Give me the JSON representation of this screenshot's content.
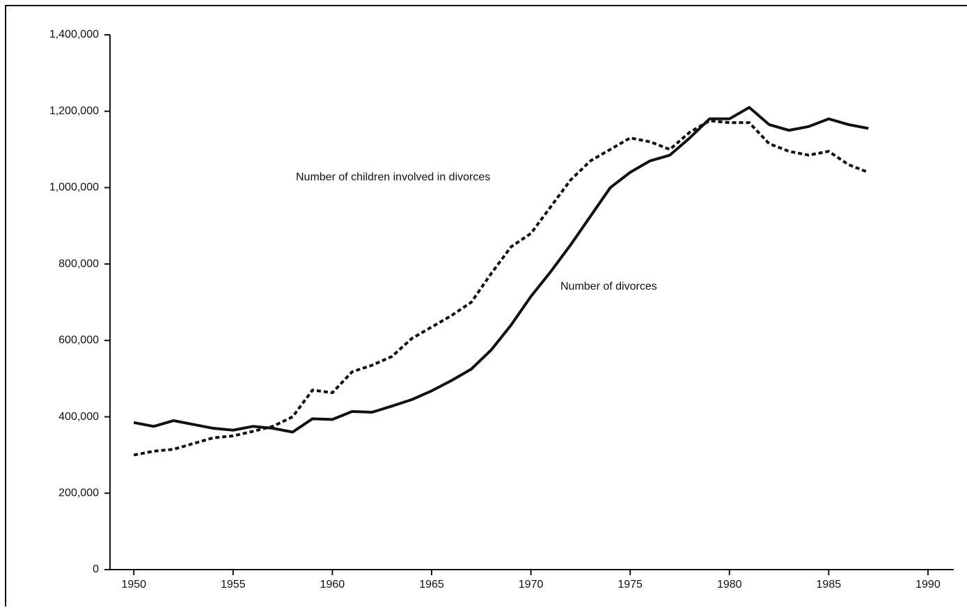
{
  "chart_data": {
    "type": "line",
    "x": [
      1950,
      1951,
      1952,
      1953,
      1954,
      1955,
      1956,
      1957,
      1958,
      1959,
      1960,
      1961,
      1962,
      1963,
      1964,
      1965,
      1966,
      1967,
      1968,
      1969,
      1970,
      1971,
      1972,
      1973,
      1974,
      1975,
      1976,
      1977,
      1978,
      1979,
      1980,
      1981,
      1982,
      1983,
      1984,
      1985,
      1986,
      1987
    ],
    "series": [
      {
        "name": "Number of divorces",
        "color": "#111111",
        "style": "solid",
        "values": [
          385000,
          375000,
          390000,
          380000,
          370000,
          365000,
          375000,
          370000,
          360000,
          395000,
          393000,
          414000,
          412000,
          428000,
          445000,
          468000,
          495000,
          525000,
          575000,
          640000,
          715000,
          780000,
          850000,
          925000,
          1000000,
          1040000,
          1070000,
          1085000,
          1130000,
          1180000,
          1180000,
          1210000,
          1165000,
          1150000,
          1160000,
          1180000,
          1165000,
          1155000
        ]
      },
      {
        "name": "Number of children involved in divorces",
        "color": "#111111",
        "style": "dotted",
        "values": [
          300000,
          310000,
          315000,
          330000,
          345000,
          350000,
          362000,
          375000,
          400000,
          470000,
          463000,
          518000,
          535000,
          558000,
          605000,
          635000,
          665000,
          700000,
          775000,
          845000,
          880000,
          950000,
          1020000,
          1070000,
          1100000,
          1130000,
          1120000,
          1100000,
          1145000,
          1175000,
          1170000,
          1170000,
          1115000,
          1095000,
          1085000,
          1095000,
          1060000,
          1040000
        ]
      }
    ],
    "xlim": [
      1948.8,
      1991.3
    ],
    "xticks": [
      1950,
      1955,
      1960,
      1965,
      1970,
      1975,
      1980,
      1985,
      1990
    ],
    "ylim": [
      0,
      1400000
    ],
    "yticks": [
      0,
      {
        "value": 200000,
        "label": "200,000"
      },
      {
        "value": 400000,
        "label": "400,000"
      },
      {
        "value": 600000,
        "label": "600,000"
      },
      {
        "value": 800000,
        "label": "800,000"
      },
      {
        "value": 1000000,
        "label": "1,000,000"
      },
      {
        "value": 1200000,
        "label": "1,200,000"
      },
      {
        "value": 1400000,
        "label": "1,400,000"
      }
    ],
    "grid": false
  }
}
